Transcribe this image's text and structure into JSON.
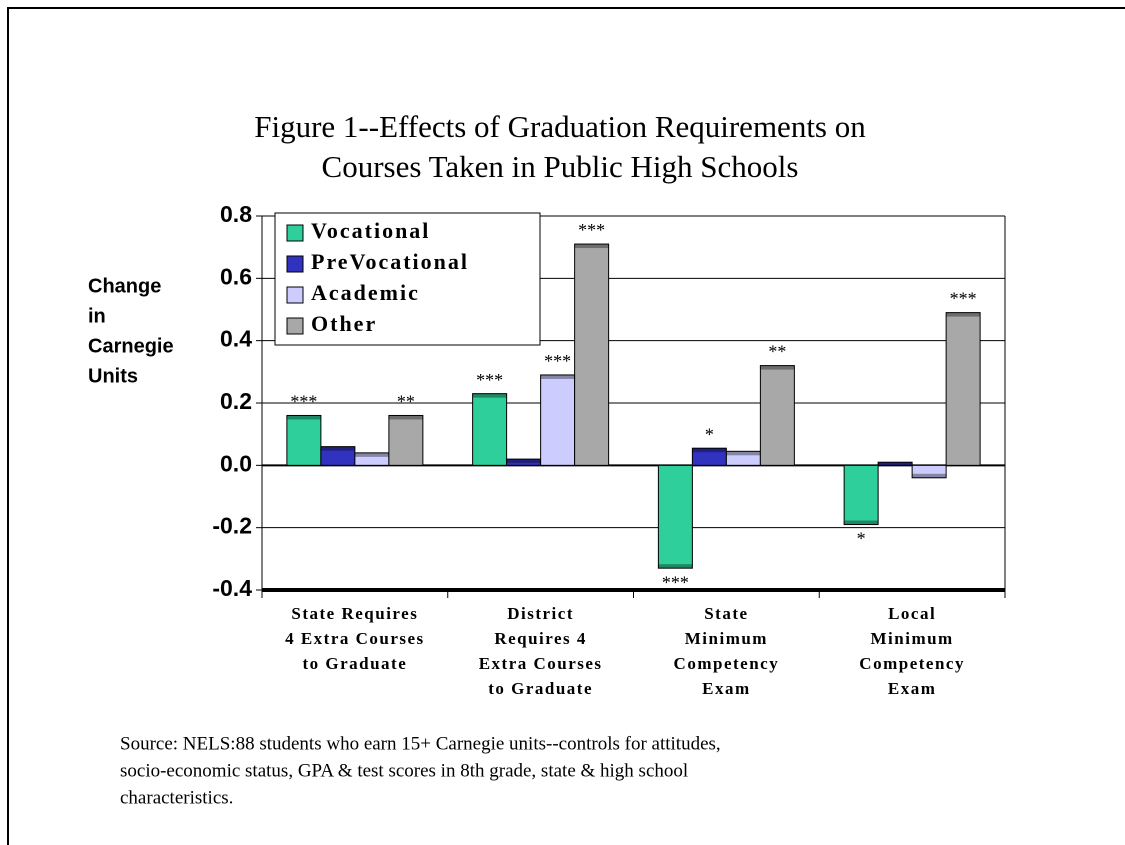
{
  "chart_data": {
    "type": "bar",
    "title": [
      "Figure 1--Effects of Graduation Requirements on",
      "Courses Taken in Public High Schools"
    ],
    "y_label": [
      "Change",
      " in",
      "Carnegie",
      "Units"
    ],
    "categories": [
      [
        "State Requires",
        "4 Extra Courses",
        "to Graduate"
      ],
      [
        "District",
        "Requires 4",
        "Extra Courses",
        "to Graduate"
      ],
      [
        "State",
        "Minimum",
        "Competency",
        "Exam"
      ],
      [
        "Local",
        "Minimum",
        "Competency",
        "Exam"
      ]
    ],
    "series": [
      {
        "name": "Vocational",
        "color": "#2ecf9a",
        "values": [
          0.16,
          0.23,
          -0.33,
          -0.19
        ],
        "significance": [
          "***",
          "***",
          "***",
          "*"
        ]
      },
      {
        "name": "PreVocational",
        "color": "#3232c0",
        "values": [
          0.06,
          0.02,
          0.055,
          0.01
        ],
        "significance": [
          null,
          null,
          "*",
          null
        ]
      },
      {
        "name": "Academic",
        "color": "#ccccff",
        "values": [
          0.04,
          0.29,
          0.045,
          -0.04
        ],
        "significance": [
          null,
          "***",
          null,
          null
        ]
      },
      {
        "name": "Other",
        "color": "#a8a8a8",
        "values": [
          0.16,
          0.71,
          0.32,
          0.49
        ],
        "significance": [
          "**",
          "***",
          "**",
          "***"
        ]
      }
    ],
    "ylim": [
      -0.4,
      0.8
    ],
    "yticks": [
      {
        "value": -0.4,
        "label": "-0.4"
      },
      {
        "value": -0.2,
        "label": "-0.2"
      },
      {
        "value": 0,
        "label": "0.0"
      },
      {
        "value": 0.2,
        "label": "0.2"
      },
      {
        "value": 0.4,
        "label": "0.4"
      },
      {
        "value": 0.6,
        "label": "0.6"
      },
      {
        "value": 0.8,
        "label": "0.8"
      }
    ],
    "grid": true,
    "legend": "upper left",
    "source": [
      "Source:  NELS:88 students who earn 15+ Carnegie units--controls for attitudes,",
      "socio-economic status, GPA & test scores in 8th grade, state & high school",
      "characteristics."
    ]
  }
}
